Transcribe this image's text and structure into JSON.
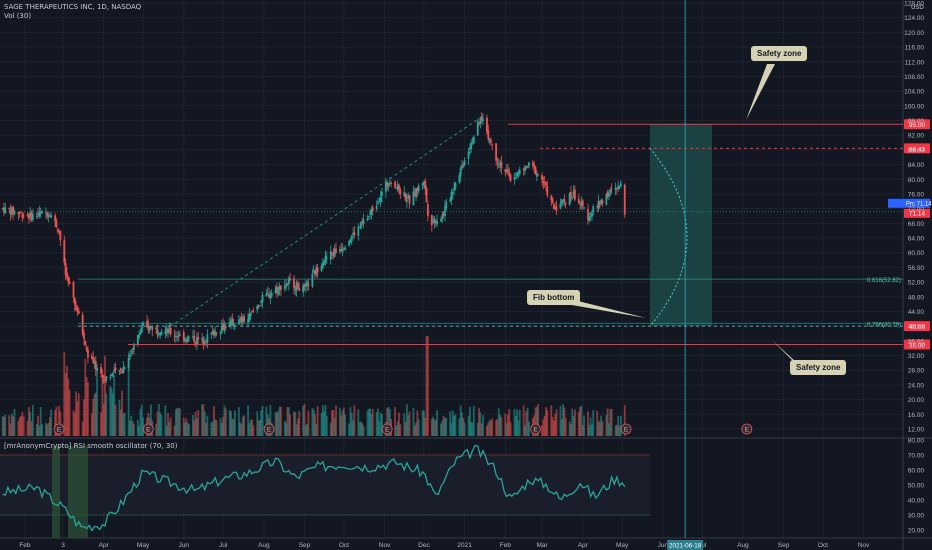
{
  "header": {
    "title": "SAGE THERAPEUTICS INC, 1D, NASDAQ",
    "volume_label": "Vol (30)",
    "oscillator_label": "[mrAnonymCrypto] RSI smooth oscillator (70, 30)",
    "currency": "USD"
  },
  "callouts": {
    "safety_top": "Safety zone",
    "safety_bottom": "Safety zone",
    "fib_bottom": "Fib bottom"
  },
  "colors": {
    "background": "#131722",
    "up": "#26a69a",
    "down": "#ef5350",
    "level_red": "#f23645",
    "fib_teal": "#22ab94",
    "zone_fill": "#1c4a48",
    "callout_bg": "#d6d2b4",
    "crosshair": "#3aa6b9"
  },
  "chart_data": [
    {
      "type": "candlestick",
      "title": "SAGE THERAPEUTICS INC, 1D, NASDAQ",
      "ylabel": "USD",
      "ylim": [
        10,
        130
      ],
      "y_ticks": [
        12,
        16,
        20,
        24,
        28,
        32,
        36,
        40,
        44,
        48,
        52,
        56,
        60,
        64,
        68,
        72,
        76,
        80,
        84,
        88,
        92,
        96,
        100,
        104,
        108,
        112,
        116,
        120,
        124,
        128
      ],
      "x_ticks": [
        "Feb",
        "3",
        "Apr",
        "May",
        "Jun",
        "Jul",
        "Aug",
        "Sep",
        "Oct",
        "Nov",
        "Dec",
        "2021",
        "Feb",
        "Mar",
        "Apr",
        "May",
        "Jun",
        "Jul",
        "Aug",
        "Sep",
        "Oct",
        "Nov"
      ],
      "x_tick_dates": [
        "2020-02",
        "2020-03",
        "2020-04",
        "2020-05",
        "2020-06",
        "2020-07",
        "2020-08",
        "2020-09",
        "2020-10",
        "2020-11",
        "2020-12",
        "2021-01",
        "2021-02",
        "2021-03",
        "2021-04",
        "2021-05",
        "2021-06",
        "2021-07",
        "2021-08",
        "2021-09",
        "2021-10",
        "2021-11"
      ],
      "price_path": [
        [
          "2020-01-15",
          72
        ],
        [
          "2020-02-05",
          70
        ],
        [
          "2020-02-20",
          71
        ],
        [
          "2020-02-27",
          66
        ],
        [
          "2020-03-03",
          54
        ],
        [
          "2020-03-12",
          44
        ],
        [
          "2020-03-20",
          32
        ],
        [
          "2020-04-01",
          26
        ],
        [
          "2020-04-15",
          28
        ],
        [
          "2020-05-01",
          40
        ],
        [
          "2020-05-15",
          39
        ],
        [
          "2020-06-01",
          37
        ],
        [
          "2020-06-15",
          36
        ],
        [
          "2020-07-01",
          40
        ],
        [
          "2020-07-20",
          42
        ],
        [
          "2020-08-01",
          48
        ],
        [
          "2020-08-20",
          52
        ],
        [
          "2020-09-01",
          50
        ],
        [
          "2020-09-15",
          58
        ],
        [
          "2020-10-01",
          62
        ],
        [
          "2020-10-20",
          70
        ],
        [
          "2020-11-05",
          80
        ],
        [
          "2020-11-20",
          74
        ],
        [
          "2020-12-01",
          80
        ],
        [
          "2020-12-05",
          68
        ],
        [
          "2020-12-15",
          70
        ],
        [
          "2020-12-28",
          82
        ],
        [
          "2021-01-08",
          92
        ],
        [
          "2021-01-14",
          97
        ],
        [
          "2021-01-25",
          86
        ],
        [
          "2021-02-05",
          80
        ],
        [
          "2021-02-20",
          84
        ],
        [
          "2021-03-01",
          80
        ],
        [
          "2021-03-10",
          72
        ],
        [
          "2021-03-25",
          76
        ],
        [
          "2021-04-05",
          70
        ],
        [
          "2021-04-20",
          76
        ],
        [
          "2021-04-30",
          78
        ],
        [
          "2021-05-03",
          71.14
        ]
      ],
      "last_price": 71.14,
      "horizontal_levels": [
        {
          "label": "95.00",
          "value": 95.0,
          "style": "solid"
        },
        {
          "label": "88.43",
          "value": 88.43,
          "style": "dashed"
        },
        {
          "label": "40.00",
          "value": 40.0,
          "style": "dashed"
        },
        {
          "label": "35.00",
          "value": 35.0,
          "style": "solid"
        }
      ],
      "fib_levels": [
        {
          "label": "0.618(52.82)",
          "value": 52.82
        },
        {
          "label": "0.786(40.79)",
          "value": 40.79
        }
      ],
      "price_labels": {
        "last_price_badge": "Prc  71.14",
        "last_price_axis": "71.14"
      },
      "projection_date": "2021-06-18",
      "x_tick_badge": "2021-06-18"
    },
    {
      "type": "bar",
      "title": "Vol (30)",
      "earnings_markers": [
        "E",
        "E",
        "E",
        "E",
        "E",
        "E",
        "E"
      ]
    },
    {
      "type": "line",
      "title": "[mrAnonymCrypto] RSI smooth oscillator (70, 30)",
      "ylim": [
        17,
        82
      ],
      "y_ticks": [
        20,
        30,
        40,
        50,
        60,
        70,
        80
      ],
      "overbought": 70,
      "oversold": 30,
      "rsi_path": [
        [
          "2020-01-15",
          45
        ],
        [
          "2020-02-10",
          48
        ],
        [
          "2020-03-01",
          35
        ],
        [
          "2020-03-15",
          22
        ],
        [
          "2020-04-01",
          24
        ],
        [
          "2020-04-15",
          38
        ],
        [
          "2020-05-01",
          58
        ],
        [
          "2020-05-20",
          52
        ],
        [
          "2020-06-10",
          46
        ],
        [
          "2020-07-01",
          54
        ],
        [
          "2020-07-20",
          58
        ],
        [
          "2020-08-10",
          66
        ],
        [
          "2020-08-25",
          55
        ],
        [
          "2020-09-10",
          62
        ],
        [
          "2020-10-01",
          64
        ],
        [
          "2020-10-20",
          62
        ],
        [
          "2020-11-10",
          65
        ],
        [
          "2020-12-01",
          58
        ],
        [
          "2020-12-10",
          42
        ],
        [
          "2020-12-25",
          66
        ],
        [
          "2021-01-10",
          74
        ],
        [
          "2021-01-25",
          60
        ],
        [
          "2021-02-05",
          40
        ],
        [
          "2021-02-20",
          54
        ],
        [
          "2021-03-05",
          50
        ],
        [
          "2021-03-15",
          40
        ],
        [
          "2021-03-30",
          52
        ],
        [
          "2021-04-10",
          42
        ],
        [
          "2021-04-25",
          54
        ],
        [
          "2021-05-03",
          52
        ]
      ]
    }
  ]
}
